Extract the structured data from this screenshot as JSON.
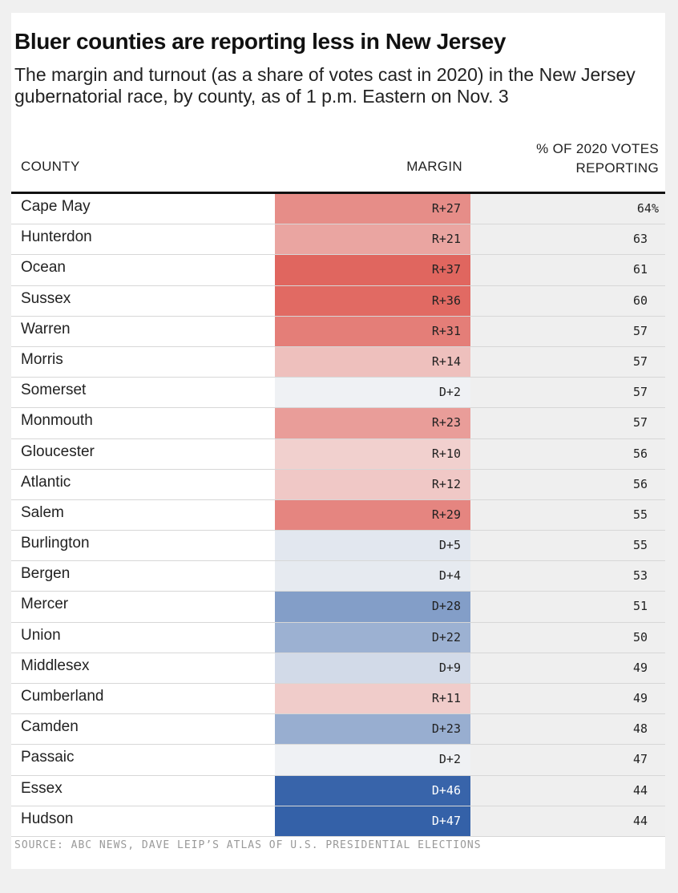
{
  "title": "Bluer counties are reporting less in New Jersey",
  "subtitle": "The margin and turnout (as a share of votes cast in 2020) in the New Jersey gubernatorial race, by county, as of 1 p.m. Eastern on Nov. 3",
  "source": "SOURCE: ABC NEWS, DAVE LEIP’S ATLAS OF U.S. PRESIDENTIAL ELECTIONS",
  "colors": {
    "republican": "#e0665f",
    "democrat": "#3461a8",
    "neutral": "#f7f7f7",
    "pct_bg": "#efefef"
  },
  "chart_data": {
    "type": "table",
    "title": "Bluer counties are reporting less in New Jersey",
    "columns": [
      "COUNTY",
      "MARGIN",
      "% OF 2020 VOTES REPORTING"
    ],
    "rows": [
      {
        "county": "Cape May",
        "party": "R",
        "margin": 27,
        "label": "R+27",
        "pct": "64%"
      },
      {
        "county": "Hunterdon",
        "party": "R",
        "margin": 21,
        "label": "R+21",
        "pct": "63"
      },
      {
        "county": "Ocean",
        "party": "R",
        "margin": 37,
        "label": "R+37",
        "pct": "61"
      },
      {
        "county": "Sussex",
        "party": "R",
        "margin": 36,
        "label": "R+36",
        "pct": "60"
      },
      {
        "county": "Warren",
        "party": "R",
        "margin": 31,
        "label": "R+31",
        "pct": "57"
      },
      {
        "county": "Morris",
        "party": "R",
        "margin": 14,
        "label": "R+14",
        "pct": "57"
      },
      {
        "county": "Somerset",
        "party": "D",
        "margin": 2,
        "label": "D+2",
        "pct": "57"
      },
      {
        "county": "Monmouth",
        "party": "R",
        "margin": 23,
        "label": "R+23",
        "pct": "57"
      },
      {
        "county": "Gloucester",
        "party": "R",
        "margin": 10,
        "label": "R+10",
        "pct": "56"
      },
      {
        "county": "Atlantic",
        "party": "R",
        "margin": 12,
        "label": "R+12",
        "pct": "56"
      },
      {
        "county": "Salem",
        "party": "R",
        "margin": 29,
        "label": "R+29",
        "pct": "55"
      },
      {
        "county": "Burlington",
        "party": "D",
        "margin": 5,
        "label": "D+5",
        "pct": "55"
      },
      {
        "county": "Bergen",
        "party": "D",
        "margin": 4,
        "label": "D+4",
        "pct": "53"
      },
      {
        "county": "Mercer",
        "party": "D",
        "margin": 28,
        "label": "D+28",
        "pct": "51"
      },
      {
        "county": "Union",
        "party": "D",
        "margin": 22,
        "label": "D+22",
        "pct": "50"
      },
      {
        "county": "Middlesex",
        "party": "D",
        "margin": 9,
        "label": "D+9",
        "pct": "49"
      },
      {
        "county": "Cumberland",
        "party": "R",
        "margin": 11,
        "label": "R+11",
        "pct": "49"
      },
      {
        "county": "Camden",
        "party": "D",
        "margin": 23,
        "label": "D+23",
        "pct": "48"
      },
      {
        "county": "Passaic",
        "party": "D",
        "margin": 2,
        "label": "D+2",
        "pct": "47"
      },
      {
        "county": "Essex",
        "party": "D",
        "margin": 46,
        "label": "D+46",
        "pct": "44"
      },
      {
        "county": "Hudson",
        "party": "D",
        "margin": 47,
        "label": "D+47",
        "pct": "44"
      }
    ]
  }
}
